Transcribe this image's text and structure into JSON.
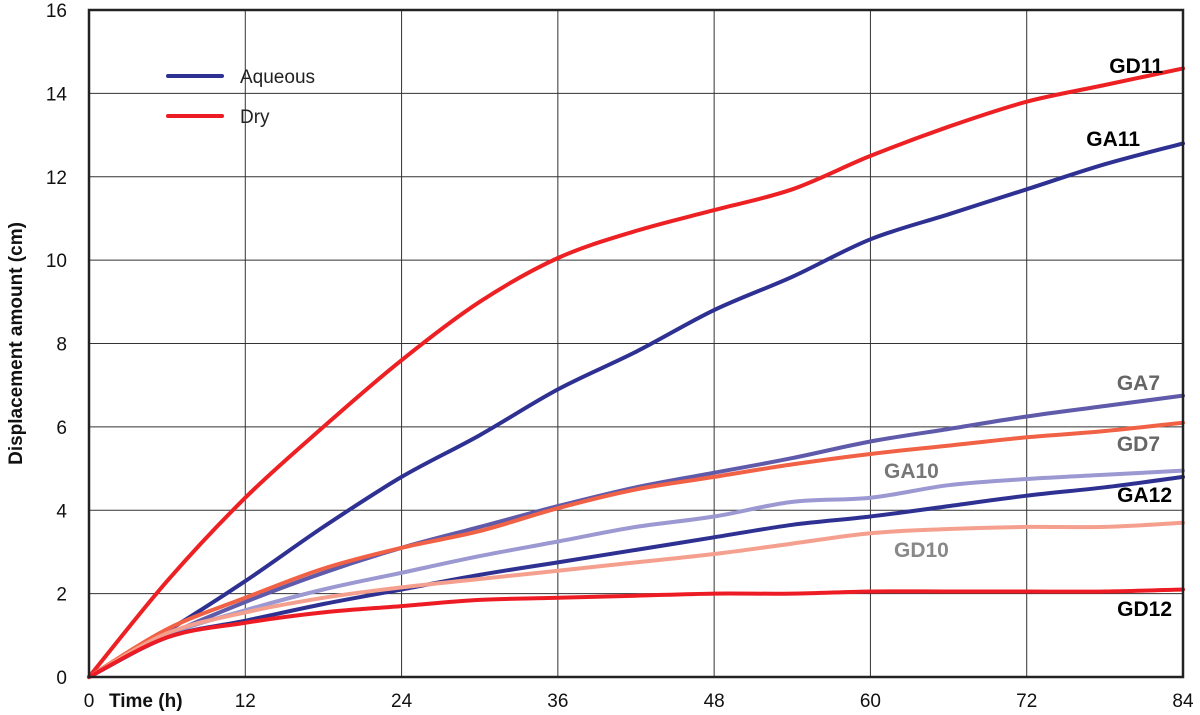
{
  "chart_data": {
    "type": "line",
    "xlabel": "Time (h)",
    "ylabel": "Displacement amount (cm)",
    "xlim": [
      0,
      84
    ],
    "ylim": [
      0,
      16
    ],
    "x_ticks": [
      0,
      12,
      24,
      36,
      48,
      60,
      72,
      84
    ],
    "y_ticks": [
      0,
      2,
      4,
      6,
      8,
      10,
      12,
      14,
      16
    ],
    "grid": true,
    "legend": {
      "placement": "top-left",
      "entries": [
        {
          "label": "Aqueous",
          "color": "#2e3192"
        },
        {
          "label": "Dry",
          "color": "#ed1c24"
        }
      ]
    },
    "series": [
      {
        "name": "GD11",
        "color": "#ed2024",
        "label_color": "#000000",
        "x": [
          0,
          6,
          12,
          18,
          24,
          30,
          36,
          42,
          48,
          54,
          60,
          66,
          72,
          78,
          84
        ],
        "y": [
          0,
          2.3,
          4.3,
          6.0,
          7.6,
          9.0,
          10.05,
          10.7,
          11.2,
          11.7,
          12.5,
          13.2,
          13.8,
          14.2,
          14.6
        ]
      },
      {
        "name": "GA11",
        "color": "#2e3192",
        "label_color": "#000000",
        "x": [
          0,
          6,
          12,
          18,
          24,
          30,
          36,
          42,
          48,
          54,
          60,
          66,
          72,
          78,
          84
        ],
        "y": [
          0,
          1.1,
          2.3,
          3.6,
          4.8,
          5.8,
          6.9,
          7.8,
          8.8,
          9.6,
          10.5,
          11.1,
          11.7,
          12.3,
          12.8
        ]
      },
      {
        "name": "GA7",
        "color": "#5f5aaa",
        "label_color": "#666666",
        "x": [
          0,
          6,
          12,
          18,
          24,
          30,
          36,
          42,
          48,
          54,
          60,
          66,
          72,
          78,
          84
        ],
        "y": [
          0,
          1.0,
          1.8,
          2.5,
          3.1,
          3.6,
          4.1,
          4.55,
          4.9,
          5.25,
          5.65,
          5.95,
          6.25,
          6.5,
          6.75
        ]
      },
      {
        "name": "GD7",
        "color": "#f16145",
        "label_color": "#666666",
        "x": [
          0,
          6,
          12,
          18,
          24,
          30,
          36,
          42,
          48,
          54,
          60,
          66,
          72,
          78,
          84
        ],
        "y": [
          0,
          1.15,
          1.9,
          2.6,
          3.1,
          3.5,
          4.05,
          4.5,
          4.8,
          5.1,
          5.35,
          5.55,
          5.75,
          5.9,
          6.1
        ]
      },
      {
        "name": "GA10",
        "color": "#9b98d2",
        "label_color": "#777777",
        "x": [
          0,
          6,
          12,
          18,
          24,
          30,
          36,
          42,
          48,
          54,
          60,
          66,
          72,
          78,
          84
        ],
        "y": [
          0,
          1.0,
          1.6,
          2.1,
          2.5,
          2.9,
          3.25,
          3.6,
          3.85,
          4.2,
          4.3,
          4.6,
          4.75,
          4.85,
          4.95
        ]
      },
      {
        "name": "GA12",
        "color": "#2e3192",
        "label_color": "#000000",
        "x": [
          0,
          6,
          12,
          18,
          24,
          30,
          36,
          42,
          48,
          54,
          60,
          66,
          72,
          78,
          84
        ],
        "y": [
          0,
          0.95,
          1.35,
          1.75,
          2.1,
          2.45,
          2.75,
          3.05,
          3.35,
          3.65,
          3.85,
          4.1,
          4.35,
          4.55,
          4.8
        ]
      },
      {
        "name": "GD10",
        "color": "#f5a08e",
        "label_color": "#888888",
        "x": [
          0,
          6,
          12,
          18,
          24,
          30,
          36,
          42,
          48,
          54,
          60,
          66,
          72,
          78,
          84
        ],
        "y": [
          0,
          1.05,
          1.55,
          1.9,
          2.15,
          2.35,
          2.55,
          2.75,
          2.95,
          3.2,
          3.45,
          3.55,
          3.6,
          3.6,
          3.7
        ]
      },
      {
        "name": "GD12",
        "color": "#ed1c24",
        "label_color": "#000000",
        "x": [
          0,
          6,
          12,
          18,
          24,
          30,
          36,
          42,
          48,
          54,
          60,
          66,
          72,
          78,
          84
        ],
        "y": [
          0,
          0.95,
          1.3,
          1.55,
          1.7,
          1.85,
          1.9,
          1.95,
          2.0,
          2.0,
          2.05,
          2.05,
          2.05,
          2.05,
          2.1
        ]
      }
    ]
  }
}
